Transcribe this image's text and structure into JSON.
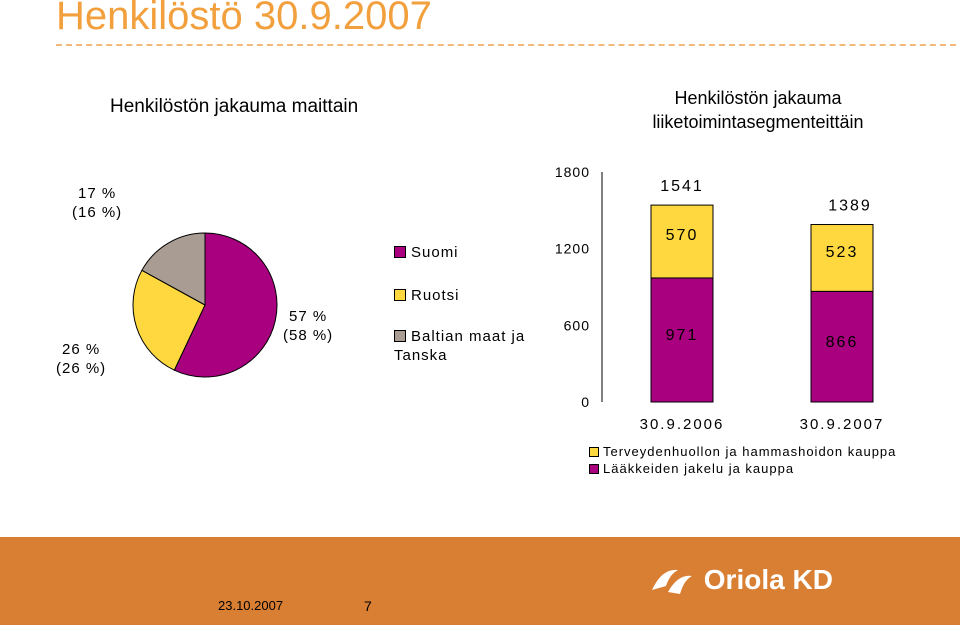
{
  "slide": {
    "title": "Henkilöstö 30.9.2007",
    "footer_date": "23.10.2007",
    "page_number": "7",
    "logo_text": "Oriola KD"
  },
  "colors": {
    "suomi": "#a8007f",
    "ruotsi": "#ffd840",
    "baltian": "#a99d93",
    "accent": "#d97f33",
    "title": "#f2a03d"
  },
  "chart_data": [
    {
      "type": "pie",
      "title": "Henkilöstön jakauma maittain",
      "slices": [
        {
          "name": "Suomi",
          "value": 57,
          "label_lines": [
            "57 %",
            "(58 %)"
          ]
        },
        {
          "name": "Ruotsi",
          "value": 26,
          "label_lines": [
            "26 %",
            "(26 %)"
          ]
        },
        {
          "name": "Baltian maat ja Tanska",
          "value": 17,
          "label_lines": [
            "17 %",
            "(16 %)"
          ]
        }
      ],
      "legend": [
        "Suomi",
        "Ruotsi",
        "Baltian maat ja Tanska"
      ],
      "legend_position": "right"
    },
    {
      "type": "bar",
      "stacked": true,
      "title": "Henkilöstön jakauma liiketoimintasegmenteittäin",
      "categories": [
        "30.9.2006",
        "30.9.2007"
      ],
      "series": [
        {
          "name": "Lääkkeiden jakelu ja kauppa",
          "values": [
            971,
            866
          ]
        },
        {
          "name": "Terveydenhuollon ja hammashoidon kauppa",
          "values": [
            570,
            523
          ]
        }
      ],
      "totals": [
        1541,
        1389
      ],
      "ylim": [
        0,
        1800
      ],
      "yticks": [
        0,
        600,
        1200,
        1800
      ],
      "legend_position": "bottom",
      "grid": false
    }
  ]
}
